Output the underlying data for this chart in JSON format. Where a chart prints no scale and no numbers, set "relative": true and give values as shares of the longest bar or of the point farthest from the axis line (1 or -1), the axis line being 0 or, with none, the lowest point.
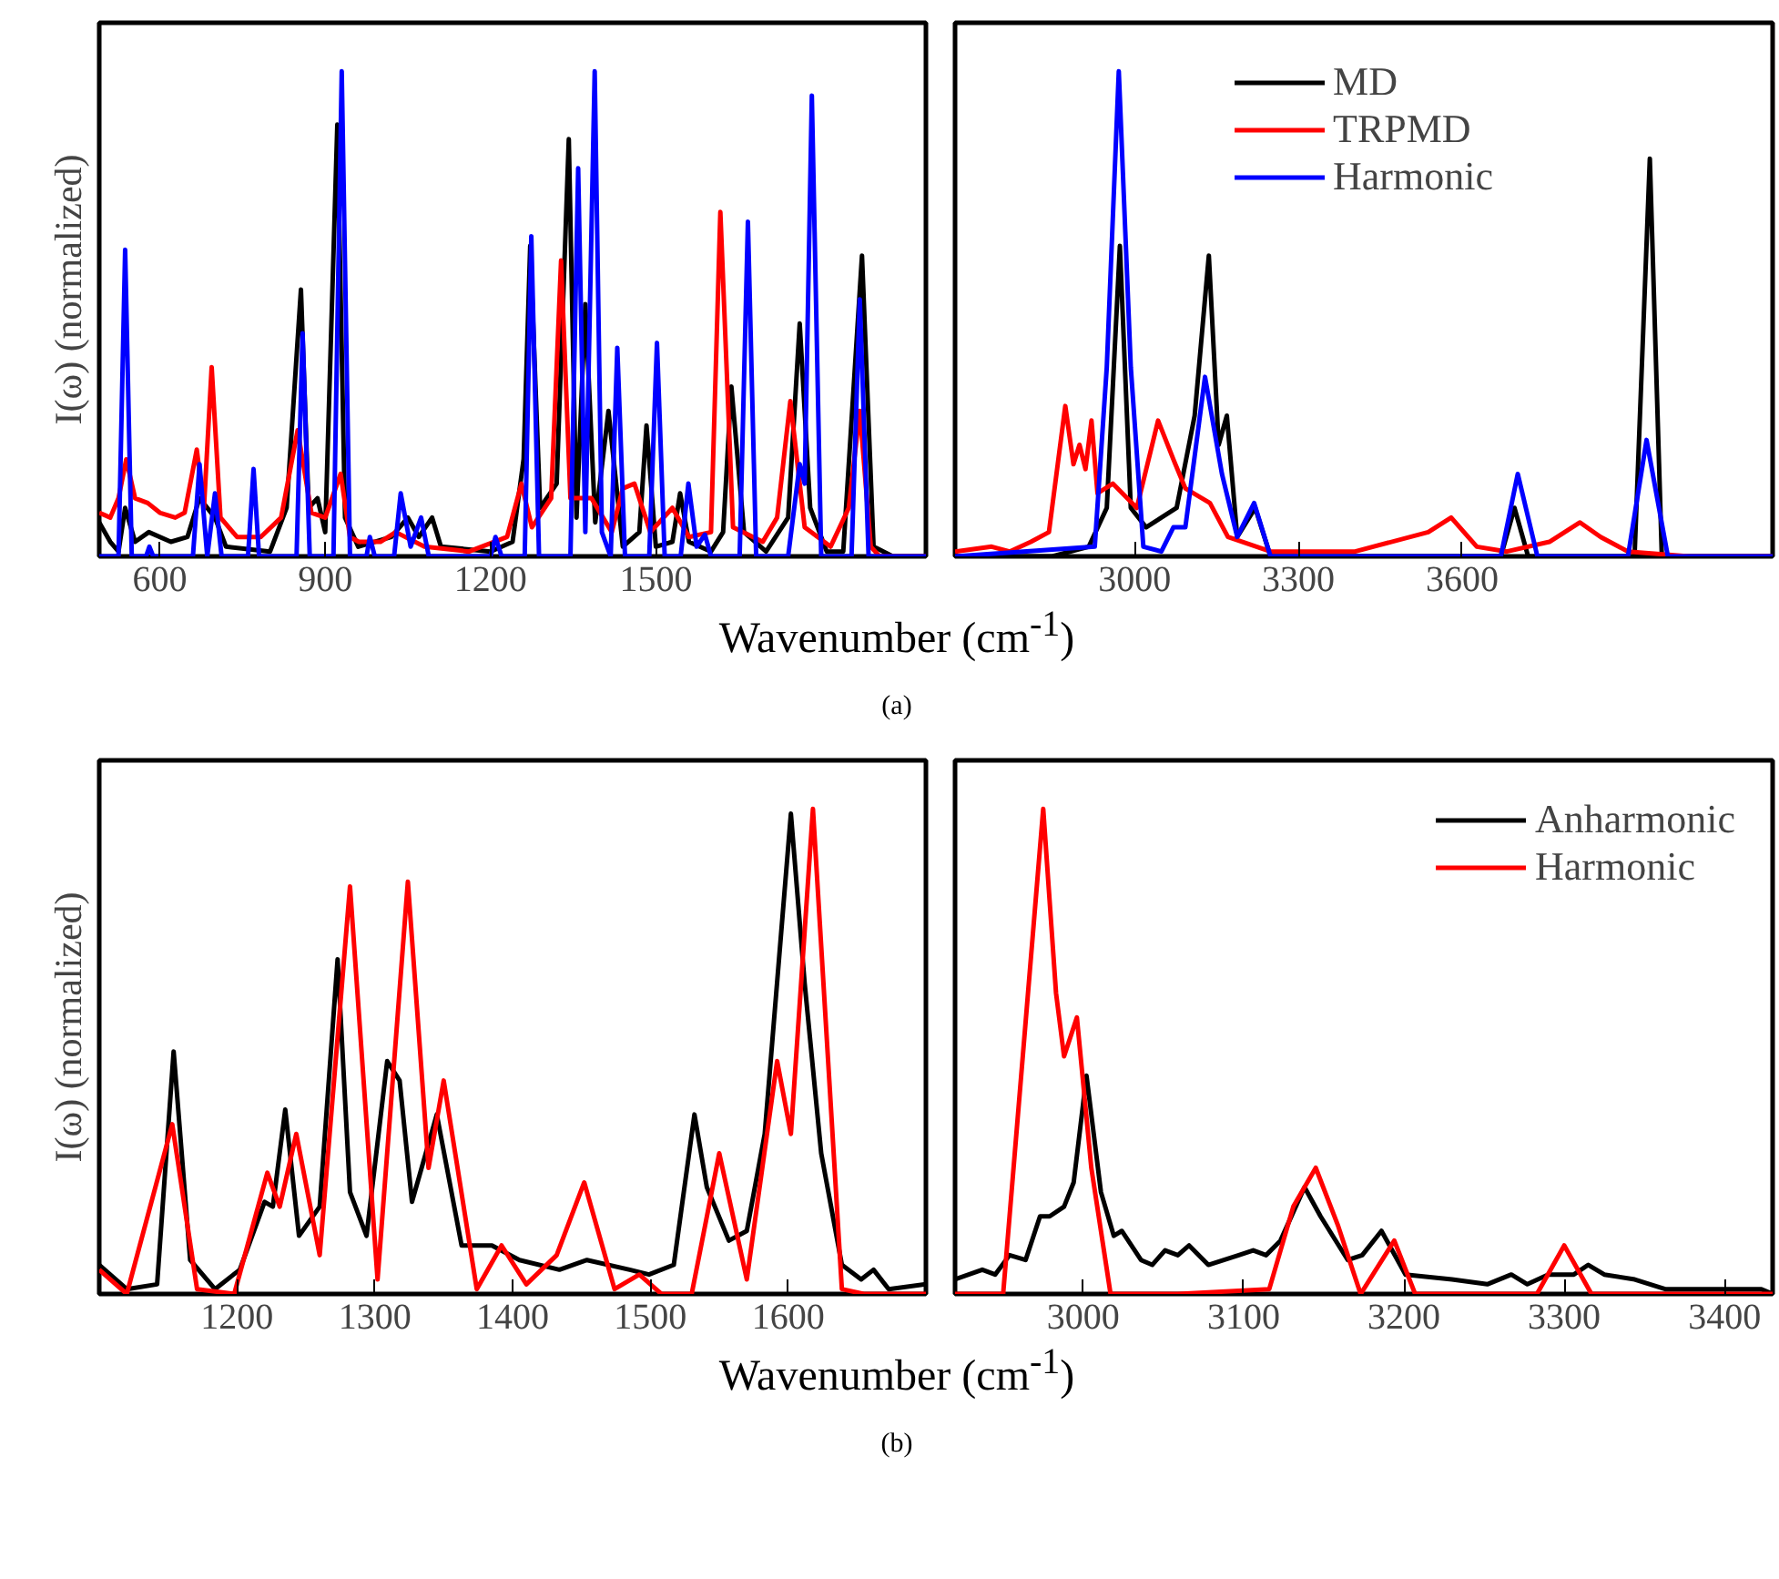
{
  "chart_data": [
    {
      "type": "line",
      "relative": true,
      "ylabel": "I(ω) (normalized)",
      "xlabel": "Wavenumber (cm$^{-1}$)",
      "annotations": [
        "(a)"
      ],
      "xlim": [
        490,
        1990
      ],
      "xticks": [
        600,
        900,
        1200,
        1500
      ],
      "series": [
        {
          "color": "#000000",
          "x": [
            490,
            510,
            525,
            537,
            555,
            580,
            620,
            650,
            672,
            700,
            720,
            800,
            830,
            856,
            870,
            886,
            900,
            922,
            936,
            960,
            1020,
            1050,
            1070,
            1094,
            1110,
            1200,
            1240,
            1260,
            1272,
            1290,
            1320,
            1342,
            1356,
            1372,
            1390,
            1414,
            1440,
            1470,
            1483,
            1500,
            1530,
            1544,
            1560,
            1600,
            1622,
            1637,
            1660,
            1700,
            1740,
            1761,
            1780,
            1810,
            1840,
            1874,
            1895,
            1930,
            1990
          ],
          "values": [
            0.07,
            0.03,
            0.01,
            0.1,
            0.03,
            0.05,
            0.03,
            0.04,
            0.12,
            0.08,
            0.02,
            0.01,
            0.1,
            0.55,
            0.1,
            0.12,
            0.05,
            0.89,
            0.08,
            0.02,
            0.04,
            0.08,
            0.04,
            0.08,
            0.02,
            0.01,
            0.03,
            0.2,
            0.64,
            0.1,
            0.15,
            0.86,
            0.08,
            0.52,
            0.07,
            0.3,
            0.02,
            0.05,
            0.27,
            0.02,
            0.03,
            0.13,
            0.03,
            0.01,
            0.05,
            0.35,
            0.05,
            0.01,
            0.08,
            0.48,
            0.1,
            0.01,
            0.01,
            0.62,
            0.02,
            0.0,
            0.0
          ]
        },
        {
          "color": "#ff0000",
          "x": [
            490,
            510,
            525,
            539,
            555,
            578,
            600,
            628,
            645,
            667,
            680,
            694,
            710,
            740,
            783,
            820,
            850,
            875,
            900,
            928,
            945,
            961,
            1000,
            1028,
            1080,
            1161,
            1230,
            1256,
            1275,
            1310,
            1328,
            1345,
            1383,
            1420,
            1440,
            1461,
            1490,
            1530,
            1560,
            1600,
            1617,
            1640,
            1694,
            1720,
            1744,
            1770,
            1817,
            1850,
            1870,
            1890,
            1906,
            1990
          ],
          "values": [
            0.09,
            0.08,
            0.12,
            0.2,
            0.12,
            0.11,
            0.09,
            0.08,
            0.09,
            0.22,
            0.1,
            0.39,
            0.08,
            0.04,
            0.04,
            0.08,
            0.26,
            0.09,
            0.08,
            0.17,
            0.04,
            0.03,
            0.03,
            0.05,
            0.02,
            0.01,
            0.04,
            0.15,
            0.06,
            0.12,
            0.61,
            0.12,
            0.12,
            0.05,
            0.14,
            0.15,
            0.05,
            0.1,
            0.04,
            0.05,
            0.71,
            0.06,
            0.03,
            0.08,
            0.32,
            0.06,
            0.02,
            0.1,
            0.3,
            0.02,
            0.0,
            0.0
          ]
        },
        {
          "color": "#0000ff",
          "x": [
            490,
            525,
            537,
            549,
            575,
            581,
            588,
            660,
            672,
            686,
            700,
            712,
            760,
            770,
            780,
            848,
            859,
            872,
            915,
            930,
            945,
            975,
            981,
            990,
            1025,
            1037,
            1055,
            1074,
            1088,
            1200,
            1209,
            1220,
            1262,
            1274,
            1288,
            1345,
            1359,
            1372,
            1389,
            1402,
            1418,
            1430,
            1444,
            1488,
            1502,
            1516,
            1545,
            1559,
            1574,
            1589,
            1600,
            1652,
            1667,
            1682,
            1740,
            1761,
            1770,
            1783,
            1800,
            1855,
            1870,
            1886,
            1990
          ],
          "values": [
            0,
            0,
            0.632,
            0,
            0,
            0.02,
            0,
            0,
            0.19,
            0,
            0.13,
            0,
            0,
            0.18,
            0,
            0,
            0.46,
            0,
            0,
            1.0,
            0,
            0,
            0.04,
            0,
            0,
            0.13,
            0.02,
            0.08,
            0,
            0,
            0.04,
            0,
            0,
            0.66,
            0,
            0,
            0.8,
            0.05,
            1.0,
            0.05,
            0,
            0.43,
            0,
            0,
            0.44,
            0,
            0,
            0.15,
            0.02,
            0.045,
            0,
            0,
            0.69,
            0,
            0,
            0.19,
            0.15,
            0.95,
            0,
            0,
            0.53,
            0,
            0
          ]
        }
      ]
    },
    {
      "type": "line",
      "relative": true,
      "legend": "top",
      "xlim": [
        2671,
        4169
      ],
      "xticks": [
        3000,
        3300,
        3600
      ],
      "series": [
        {
          "name": "MD",
          "color": "#000000",
          "x": [
            2671,
            2849,
            2916,
            2949,
            2973,
            2993,
            3021,
            3049,
            3077,
            3110,
            3136,
            3154,
            3169,
            3188,
            3221,
            3249,
            3671,
            3696,
            3721,
            3916,
            3944,
            3966,
            4169
          ],
          "values": [
            0,
            0,
            0.02,
            0.1,
            0.64,
            0.1,
            0.06,
            0.08,
            0.1,
            0.29,
            0.62,
            0.23,
            0.29,
            0.04,
            0.1,
            0,
            0,
            0.1,
            0,
            0,
            0.82,
            0,
            0
          ]
        },
        {
          "name": "TRPMD",
          "color": "#ff0000",
          "x": [
            2671,
            2738,
            2771,
            2810,
            2843,
            2873,
            2888,
            2899,
            2910,
            2921,
            2932,
            2960,
            3004,
            3043,
            3071,
            3093,
            3138,
            3171,
            3249,
            3404,
            3538,
            3580,
            3627,
            3682,
            3760,
            3816,
            3854,
            3904,
            4016,
            4169
          ],
          "values": [
            0.01,
            0.02,
            0.01,
            0.03,
            0.05,
            0.31,
            0.19,
            0.23,
            0.18,
            0.28,
            0.13,
            0.15,
            0.1,
            0.28,
            0.2,
            0.14,
            0.11,
            0.04,
            0.01,
            0.01,
            0.05,
            0.08,
            0.02,
            0.01,
            0.03,
            0.07,
            0.04,
            0.01,
            0,
            0
          ]
        },
        {
          "name": "Harmonic",
          "color": "#0000ff",
          "x": [
            2671,
            2927,
            2949,
            2971,
            2993,
            3016,
            3049,
            3071,
            3093,
            3129,
            3160,
            3188,
            3219,
            3249,
            3671,
            3702,
            3738,
            3904,
            3938,
            3977,
            4169
          ],
          "values": [
            0,
            0.02,
            0.39,
            1.0,
            0.39,
            0.02,
            0.01,
            0.06,
            0.06,
            0.37,
            0.17,
            0.04,
            0.11,
            0,
            0,
            0.17,
            0,
            0,
            0.24,
            0,
            0
          ]
        }
      ]
    },
    {
      "type": "line",
      "relative": true,
      "ylabel": "I(ω) (normalized)",
      "xlabel": "Wavenumber (cm$^{-1}$)",
      "annotations": [
        "(b)"
      ],
      "xlim": [
        1100,
        1700
      ],
      "xticks": [
        1200,
        1300,
        1400,
        1500,
        1600
      ],
      "series": [
        {
          "color": "#000000",
          "x": [
            1100,
            1120,
            1142,
            1154,
            1166,
            1184,
            1202,
            1220,
            1226,
            1235,
            1245,
            1260,
            1273,
            1282,
            1294,
            1309,
            1318,
            1327,
            1345,
            1363,
            1385,
            1405,
            1434,
            1454,
            1485,
            1499,
            1517,
            1532,
            1541,
            1557,
            1570,
            1583,
            1602,
            1612,
            1624,
            1639,
            1653,
            1662,
            1673,
            1700
          ],
          "values": [
            0.06,
            0.01,
            0.02,
            0.5,
            0.07,
            0.01,
            0.05,
            0.19,
            0.18,
            0.38,
            0.12,
            0.18,
            0.69,
            0.21,
            0.12,
            0.48,
            0.44,
            0.19,
            0.37,
            0.1,
            0.1,
            0.07,
            0.05,
            0.07,
            0.05,
            0.04,
            0.06,
            0.37,
            0.22,
            0.11,
            0.13,
            0.33,
            0.99,
            0.64,
            0.29,
            0.06,
            0.03,
            0.05,
            0.01,
            0.02
          ]
        },
        {
          "color": "#ff0000",
          "x": [
            1100,
            1120,
            1153,
            1171,
            1198,
            1222,
            1231,
            1243,
            1260,
            1282,
            1302,
            1324,
            1339,
            1350,
            1374,
            1392,
            1410,
            1432,
            1452,
            1474,
            1492,
            1508,
            1530,
            1550,
            1570,
            1592,
            1602,
            1618,
            1639,
            1655,
            1700
          ],
          "values": [
            0.05,
            0,
            0.35,
            0.01,
            0,
            0.25,
            0.18,
            0.33,
            0.08,
            0.84,
            0.03,
            0.85,
            0.26,
            0.44,
            0.01,
            0.1,
            0.02,
            0.08,
            0.23,
            0.01,
            0.04,
            0,
            0,
            0.29,
            0.03,
            0.48,
            0.33,
            1.0,
            0.01,
            0,
            0
          ]
        }
      ]
    },
    {
      "type": "line",
      "relative": true,
      "legend": "top right",
      "xlim": [
        2920,
        3430
      ],
      "xticks": [
        3000,
        3100,
        3200,
        3300,
        3400
      ],
      "series": [
        {
          "name": "Anharmonic",
          "color": "#000000",
          "x": [
            2920,
            2937,
            2945,
            2954,
            2964,
            2973,
            2979,
            2988,
            2994,
            3002,
            3011,
            3019,
            3024,
            3036,
            3043,
            3051,
            3059,
            3066,
            3078,
            3097,
            3106,
            3114,
            3123,
            3138,
            3148,
            3165,
            3174,
            3186,
            3201,
            3230,
            3252,
            3267,
            3277,
            3290,
            3306,
            3315,
            3325,
            3344,
            3363,
            3401,
            3423,
            3430
          ],
          "values": [
            0.03,
            0.05,
            0.04,
            0.08,
            0.07,
            0.16,
            0.16,
            0.18,
            0.23,
            0.45,
            0.21,
            0.12,
            0.13,
            0.07,
            0.06,
            0.09,
            0.08,
            0.1,
            0.06,
            0.08,
            0.09,
            0.08,
            0.11,
            0.22,
            0.16,
            0.07,
            0.08,
            0.13,
            0.04,
            0.03,
            0.02,
            0.04,
            0.02,
            0.04,
            0.04,
            0.06,
            0.04,
            0.03,
            0.01,
            0.01,
            0.01,
            0
          ]
        },
        {
          "name": "Harmonic",
          "color": "#ff0000",
          "x": [
            2920,
            2950,
            2964,
            2975,
            2983,
            2988,
            2996,
            3005,
            3017,
            3059,
            3116,
            3131,
            3145,
            3159,
            3173,
            3194,
            3207,
            3283,
            3300,
            3317,
            3430
          ],
          "values": [
            0,
            0,
            0.56,
            1.0,
            0.62,
            0.49,
            0.57,
            0.26,
            0,
            0,
            0.01,
            0.18,
            0.26,
            0.14,
            0,
            0.11,
            0,
            0,
            0.1,
            0,
            0
          ]
        }
      ]
    }
  ]
}
